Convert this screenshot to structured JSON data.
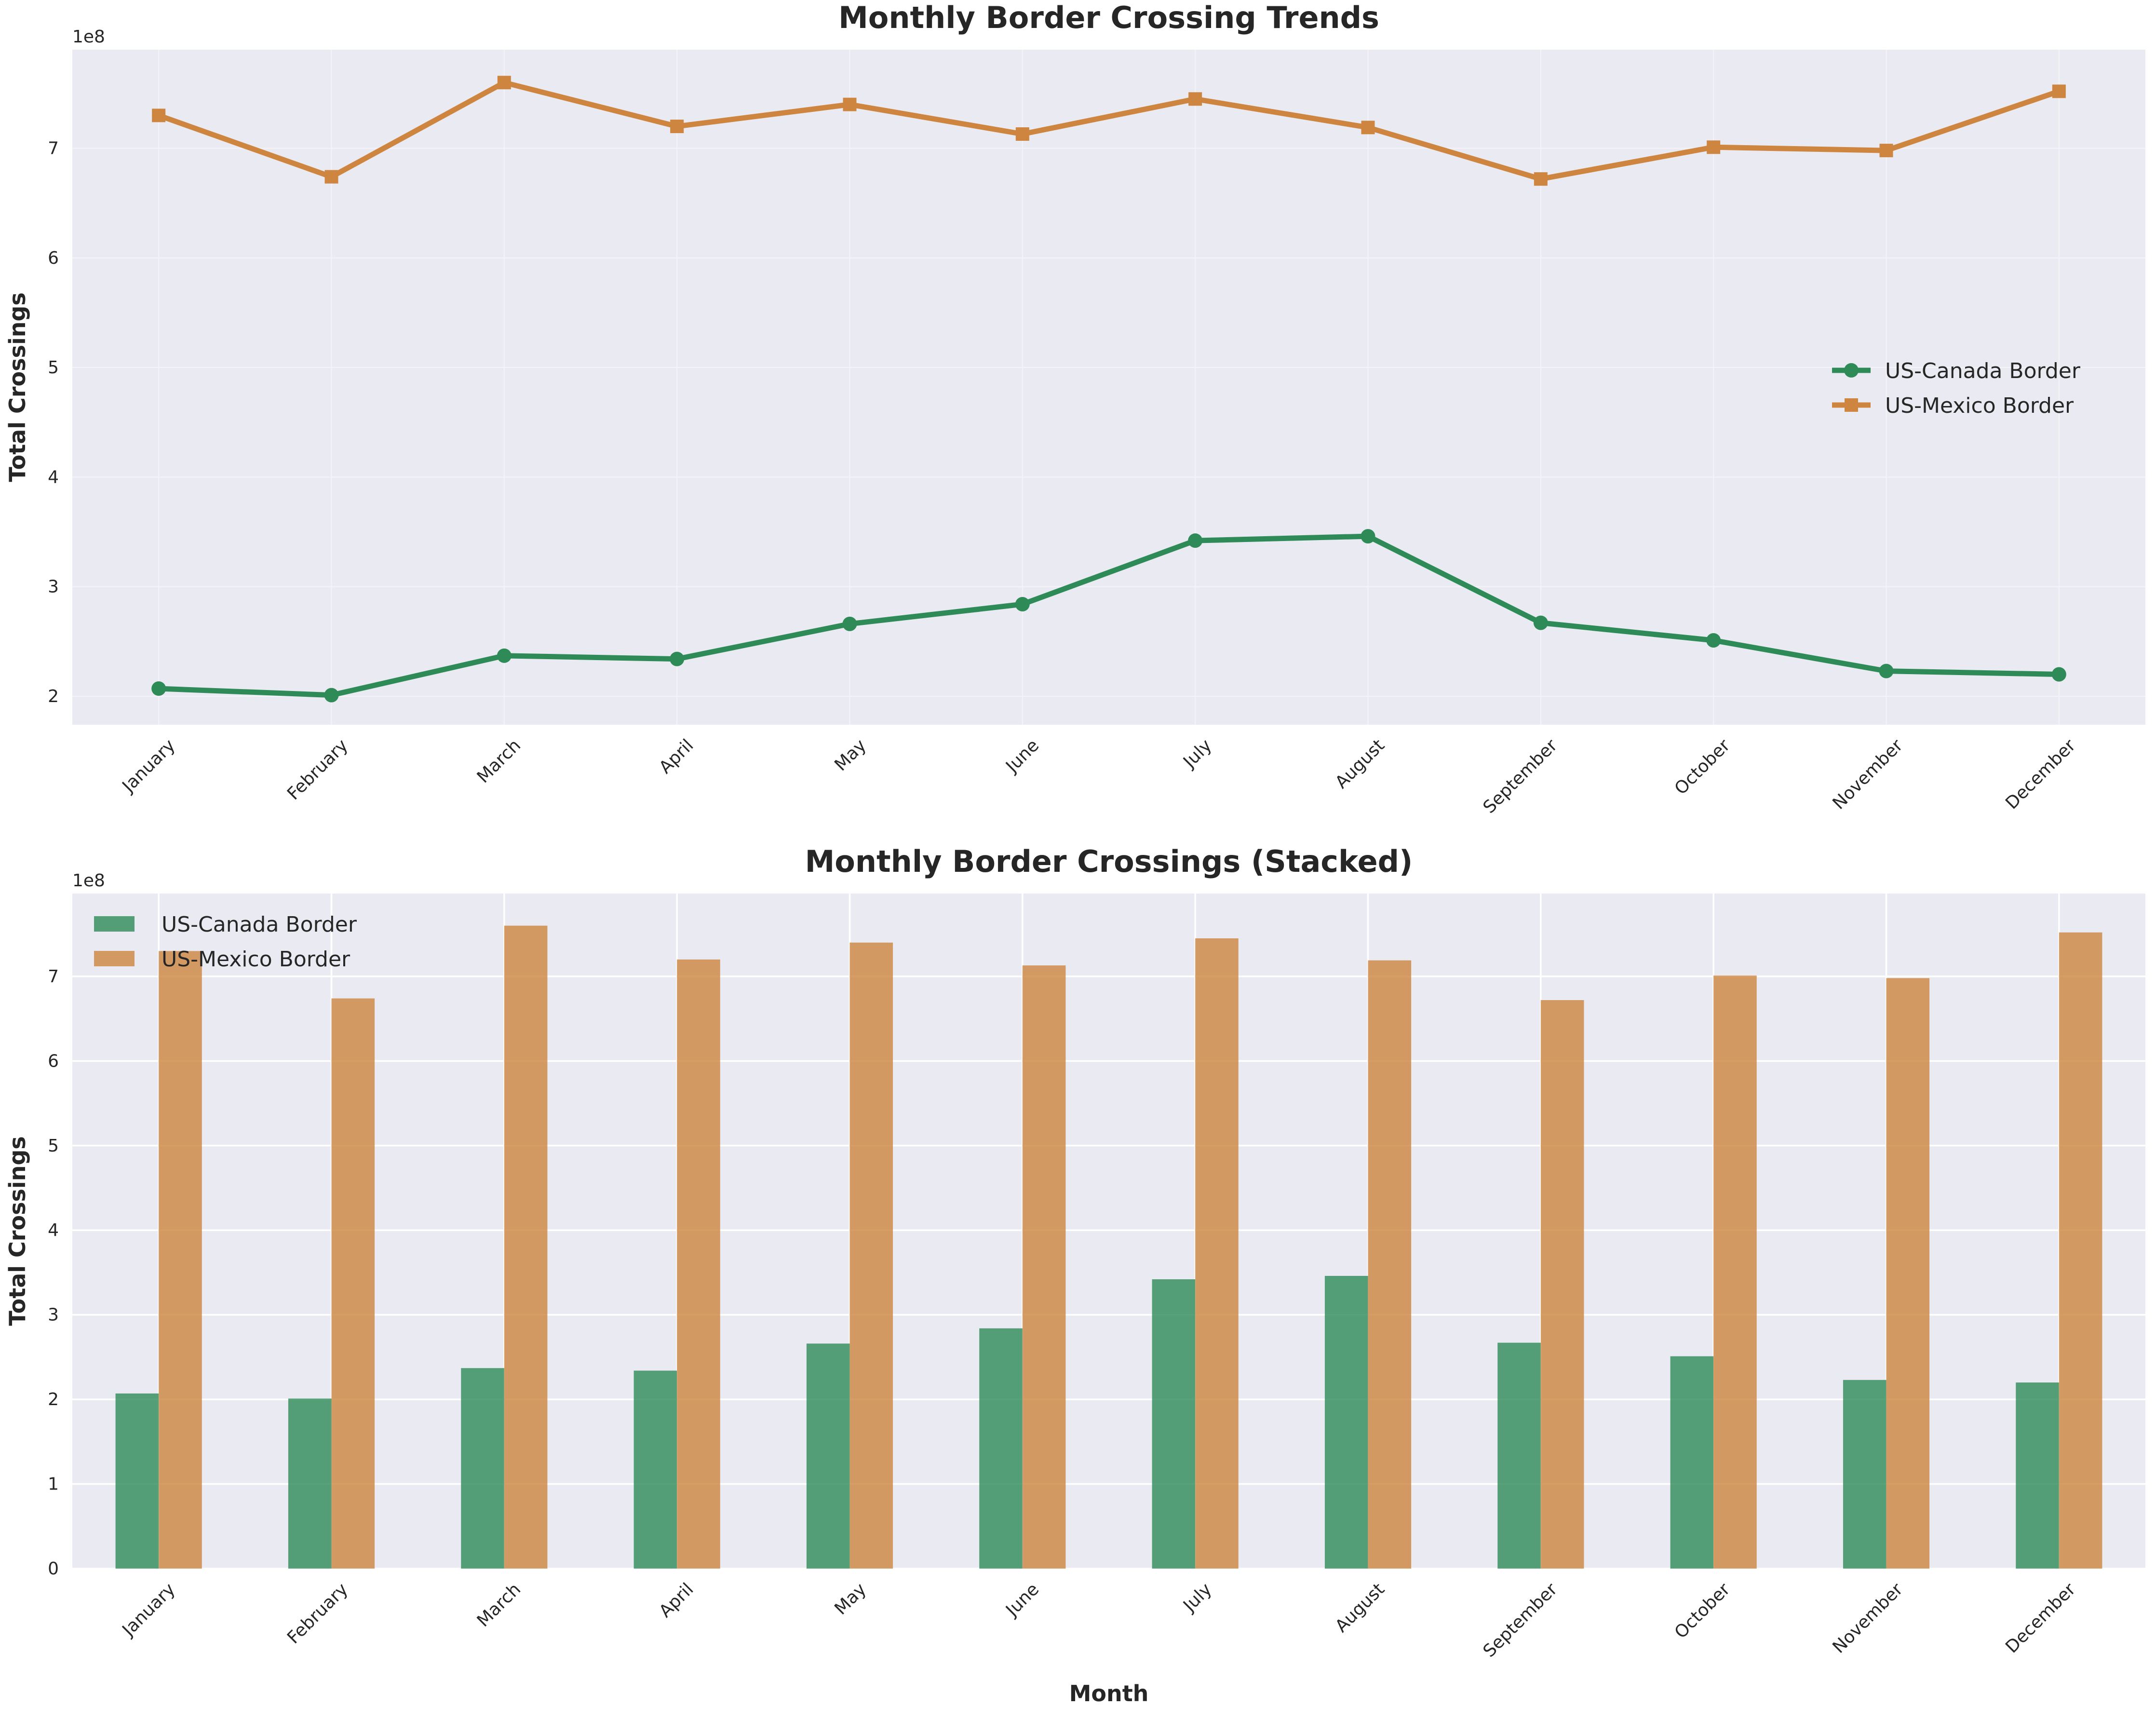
{
  "chart_data": [
    {
      "type": "line",
      "title": "Monthly Border Crossing Trends",
      "xlabel": "",
      "ylabel": "Total Crossings",
      "offset_text": "1e8",
      "categories": [
        "January",
        "February",
        "March",
        "April",
        "May",
        "June",
        "July",
        "August",
        "September",
        "October",
        "November",
        "December"
      ],
      "yticks": [
        2,
        3,
        4,
        5,
        6,
        7
      ],
      "ylim": [
        1.74,
        7.9
      ],
      "grid": true,
      "legend_position": "center-right",
      "series": [
        {
          "name": "US-Canada Border",
          "color": "#2e8b57",
          "marker": "circle",
          "values": [
            2.07,
            2.01,
            2.37,
            2.34,
            2.66,
            2.84,
            3.42,
            3.46,
            2.67,
            2.51,
            2.23,
            2.2
          ]
        },
        {
          "name": "US-Mexico Border",
          "color": "#cd853f",
          "marker": "square",
          "values": [
            7.3,
            6.74,
            7.6,
            7.2,
            7.4,
            7.13,
            7.45,
            7.19,
            6.72,
            7.01,
            6.98,
            7.52
          ]
        }
      ]
    },
    {
      "type": "bar",
      "title": "Monthly Border Crossings (Stacked)",
      "xlabel": "Month",
      "ylabel": "Total Crossings",
      "offset_text": "1e8",
      "categories": [
        "January",
        "February",
        "March",
        "April",
        "May",
        "June",
        "July",
        "August",
        "September",
        "October",
        "November",
        "December"
      ],
      "yticks": [
        0,
        1,
        2,
        3,
        4,
        5,
        6,
        7
      ],
      "ylim": [
        0,
        7.98
      ],
      "grid": true,
      "legend_position": "top-left",
      "series": [
        {
          "name": "US-Canada Border",
          "color": "#2e8b57",
          "values": [
            2.07,
            2.01,
            2.37,
            2.34,
            2.66,
            2.84,
            3.42,
            3.46,
            2.67,
            2.51,
            2.23,
            2.2
          ]
        },
        {
          "name": "US-Mexico Border",
          "color": "#cd853f",
          "values": [
            7.3,
            6.74,
            7.6,
            7.2,
            7.4,
            7.13,
            7.45,
            7.19,
            6.72,
            7.01,
            6.98,
            7.52
          ]
        }
      ]
    }
  ]
}
